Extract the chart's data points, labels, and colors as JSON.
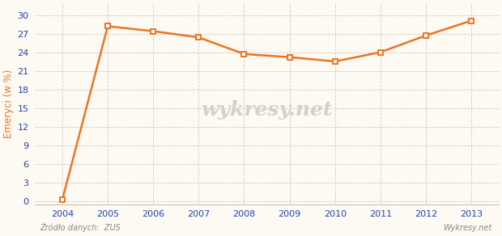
{
  "years": [
    2004,
    2005,
    2006,
    2007,
    2008,
    2009,
    2010,
    2011,
    2012,
    2013
  ],
  "values": [
    0.2,
    28.3,
    27.5,
    26.5,
    23.8,
    23.3,
    22.6,
    24.1,
    26.8,
    29.2
  ],
  "line_color": "#e87722",
  "marker_color": "#e87722",
  "bg_color": "#fdf9f3",
  "plot_bg_color": "#fdf9f3",
  "grid_color": "#d4c4b0",
  "ylabel": "Emeryci (w %)",
  "ylabel_color": "#e87722",
  "tick_color": "#2244aa",
  "source_text": "Źródło danych:  ZUS",
  "watermark_text": "wykresy.net",
  "watermark_color": "#d8d0c8",
  "ylim": [
    -0.5,
    32
  ],
  "yticks": [
    0,
    3,
    6,
    9,
    12,
    15,
    18,
    21,
    24,
    27,
    30
  ],
  "axis_fontsize": 8,
  "source_fontsize": 7
}
